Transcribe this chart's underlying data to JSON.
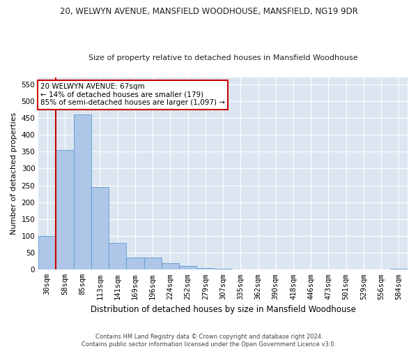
{
  "title": "20, WELWYN AVENUE, MANSFIELD WOODHOUSE, MANSFIELD, NG19 9DR",
  "subtitle": "Size of property relative to detached houses in Mansfield Woodhouse",
  "xlabel": "Distribution of detached houses by size in Mansfield Woodhouse",
  "ylabel": "Number of detached properties",
  "footer_line1": "Contains HM Land Registry data © Crown copyright and database right 2024.",
  "footer_line2": "Contains public sector information licensed under the Open Government Licence v3.0.",
  "annotation_line1": "20 WELWYN AVENUE: 67sqm",
  "annotation_line2": "← 14% of detached houses are smaller (179)",
  "annotation_line3": "85% of semi-detached houses are larger (1,097) →",
  "categories": [
    "30sqm",
    "58sqm",
    "85sqm",
    "113sqm",
    "141sqm",
    "169sqm",
    "196sqm",
    "224sqm",
    "252sqm",
    "279sqm",
    "307sqm",
    "335sqm",
    "362sqm",
    "390sqm",
    "418sqm",
    "446sqm",
    "473sqm",
    "501sqm",
    "529sqm",
    "556sqm",
    "584sqm"
  ],
  "values": [
    100,
    355,
    460,
    245,
    80,
    35,
    35,
    20,
    10,
    5,
    2,
    0,
    1,
    0,
    0,
    0,
    0,
    0,
    0,
    0,
    2
  ],
  "bar_color": "#aec6e8",
  "bar_edge_color": "#5b9bd5",
  "highlight_line_color": "#cc0000",
  "annotation_box_edge_color": "#cc0000",
  "annotation_box_face_color": "#ffffff",
  "background_color": "#ffffff",
  "plot_background_color": "#dce6f1",
  "grid_color": "#ffffff",
  "ylim": [
    0,
    570
  ],
  "yticks": [
    0,
    50,
    100,
    150,
    200,
    250,
    300,
    350,
    400,
    450,
    500,
    550
  ],
  "title_fontsize": 8.5,
  "subtitle_fontsize": 8.0,
  "ylabel_fontsize": 8.0,
  "xlabel_fontsize": 8.5,
  "tick_fontsize": 7.5,
  "footer_fontsize": 6.0,
  "annotation_fontsize": 7.5
}
